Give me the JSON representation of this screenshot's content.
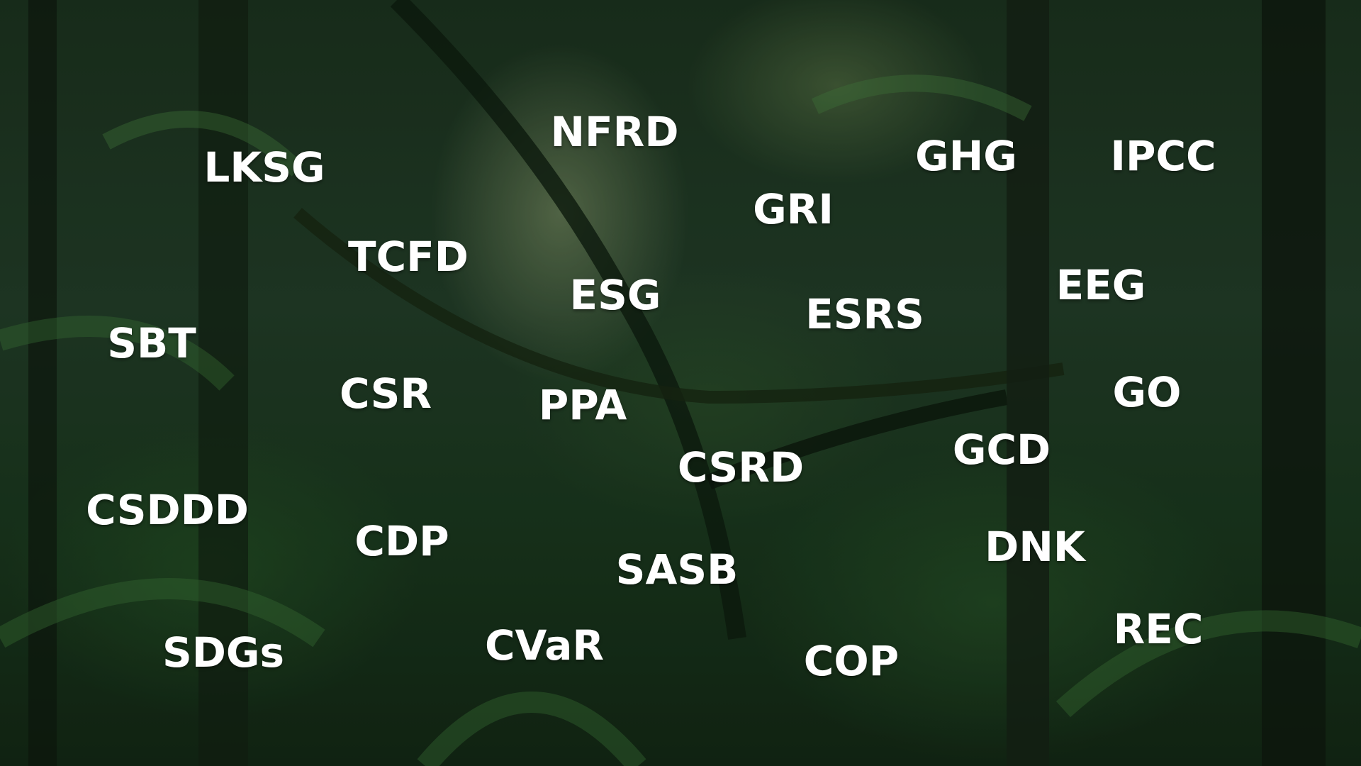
{
  "labels": [
    "NFRD",
    "LKSG",
    "GHG",
    "IPCC",
    "GRI",
    "TCFD",
    "ESG",
    "ESRS",
    "EEG",
    "SBT",
    "CSR",
    "PPA",
    "GO",
    "GCD",
    "CSRD",
    "CSDDD",
    "CDP",
    "DNK",
    "SASB",
    "REC",
    "SDGs",
    "CVaR",
    "COP"
  ]
}
